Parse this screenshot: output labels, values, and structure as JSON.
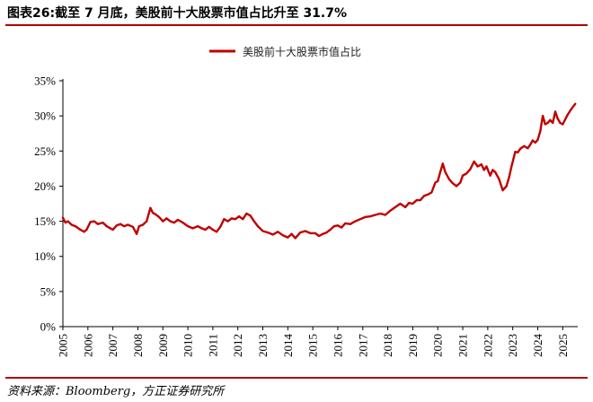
{
  "header": {
    "title": "图表26:截至 7 月底，美股前十大股票市值占比升至 31.7%"
  },
  "footer": {
    "source": "资料来源：Bloomberg，方正证券研究所"
  },
  "colors": {
    "series": "#c00000",
    "rule": "#b00000",
    "axis": "#000000"
  },
  "chart_data": {
    "type": "line",
    "title": "",
    "xlabel": "",
    "ylabel": "",
    "ylim": [
      0,
      35
    ],
    "xlim": [
      2005,
      2025.6
    ],
    "y_ticks": [
      "0%",
      "5%",
      "10%",
      "15%",
      "20%",
      "25%",
      "30%",
      "35%"
    ],
    "y_tick_values": [
      0,
      5,
      10,
      15,
      20,
      25,
      30,
      35
    ],
    "x_ticks": [
      "2005",
      "2006",
      "2007",
      "2008",
      "2009",
      "2010",
      "2011",
      "2012",
      "2013",
      "2014",
      "2015",
      "2016",
      "2017",
      "2018",
      "2019",
      "2020",
      "2021",
      "2022",
      "2023",
      "2024",
      "2025"
    ],
    "x_tick_values": [
      2005,
      2006,
      2007,
      2008,
      2009,
      2010,
      2011,
      2012,
      2013,
      2014,
      2015,
      2016,
      2017,
      2018,
      2019,
      2020,
      2021,
      2022,
      2023,
      2024,
      2025
    ],
    "grid": false,
    "legend_position": "top-center",
    "series": [
      {
        "name": "美股前十大股票市值占比",
        "x": [
          2005.0,
          2005.1,
          2005.2,
          2005.35,
          2005.5,
          2005.7,
          2005.85,
          2005.95,
          2006.1,
          2006.25,
          2006.4,
          2006.6,
          2006.75,
          2006.9,
          2007.0,
          2007.15,
          2007.3,
          2007.45,
          2007.6,
          2007.8,
          2007.95,
          2008.05,
          2008.2,
          2008.35,
          2008.5,
          2008.6,
          2008.7,
          2008.85,
          2009.0,
          2009.15,
          2009.3,
          2009.45,
          2009.6,
          2009.8,
          2010.0,
          2010.2,
          2010.4,
          2010.55,
          2010.7,
          2010.85,
          2011.0,
          2011.15,
          2011.3,
          2011.45,
          2011.6,
          2011.75,
          2011.9,
          2012.05,
          2012.2,
          2012.35,
          2012.5,
          2012.65,
          2012.8,
          2013.0,
          2013.2,
          2013.4,
          2013.6,
          2013.8,
          2014.0,
          2014.15,
          2014.3,
          2014.5,
          2014.7,
          2014.9,
          2015.1,
          2015.25,
          2015.4,
          2015.55,
          2015.7,
          2015.85,
          2016.0,
          2016.15,
          2016.3,
          2016.5,
          2016.7,
          2016.9,
          2017.1,
          2017.3,
          2017.5,
          2017.7,
          2017.9,
          2018.1,
          2018.3,
          2018.5,
          2018.7,
          2018.85,
          2019.0,
          2019.15,
          2019.3,
          2019.45,
          2019.6,
          2019.75,
          2019.9,
          2020.0,
          2020.1,
          2020.2,
          2020.3,
          2020.45,
          2020.6,
          2020.75,
          2020.9,
          2021.0,
          2021.15,
          2021.3,
          2021.45,
          2021.6,
          2021.75,
          2021.85,
          2021.95,
          2022.1,
          2022.2,
          2022.3,
          2022.45,
          2022.6,
          2022.75,
          2022.85,
          2022.95,
          2023.1,
          2023.2,
          2023.3,
          2023.45,
          2023.6,
          2023.7,
          2023.8,
          2023.9,
          2024.0,
          2024.1,
          2024.2,
          2024.3,
          2024.4,
          2024.5,
          2024.6,
          2024.7,
          2024.8,
          2024.9,
          2025.0,
          2025.1,
          2025.2,
          2025.35,
          2025.5
        ],
        "values": [
          15.5,
          14.8,
          15.0,
          14.5,
          14.3,
          13.8,
          13.5,
          13.8,
          14.9,
          15.0,
          14.6,
          14.8,
          14.3,
          14.0,
          13.8,
          14.4,
          14.6,
          14.3,
          14.5,
          14.2,
          13.2,
          14.3,
          14.5,
          15.0,
          16.9,
          16.2,
          16.0,
          15.6,
          15.0,
          15.4,
          15.0,
          14.8,
          15.2,
          14.8,
          14.3,
          14.0,
          14.3,
          14.0,
          13.8,
          14.2,
          13.8,
          13.5,
          14.2,
          15.3,
          15.0,
          15.4,
          15.3,
          15.7,
          15.3,
          16.1,
          15.8,
          15.0,
          14.3,
          13.6,
          13.4,
          13.1,
          13.5,
          13.0,
          12.7,
          13.2,
          12.6,
          13.4,
          13.6,
          13.3,
          13.3,
          12.9,
          13.2,
          13.4,
          13.8,
          14.3,
          14.4,
          14.1,
          14.7,
          14.6,
          15.0,
          15.3,
          15.6,
          15.7,
          15.9,
          16.1,
          15.9,
          16.5,
          17.0,
          17.5,
          17.0,
          17.6,
          17.5,
          18.0,
          18.0,
          18.6,
          18.8,
          19.1,
          20.5,
          20.7,
          22.0,
          23.2,
          22.0,
          21.0,
          20.4,
          20.0,
          20.5,
          21.5,
          21.8,
          22.4,
          23.5,
          22.8,
          23.1,
          22.3,
          22.8,
          21.5,
          22.3,
          22.0,
          21.0,
          19.4,
          20.0,
          21.2,
          22.8,
          24.9,
          24.8,
          25.3,
          25.7,
          25.4,
          25.9,
          26.5,
          26.2,
          26.6,
          27.8,
          30.0,
          28.8,
          29.0,
          29.4,
          29.0,
          30.6,
          29.6,
          29.0,
          28.8,
          29.5,
          30.2,
          31.0,
          31.7
        ]
      }
    ]
  }
}
